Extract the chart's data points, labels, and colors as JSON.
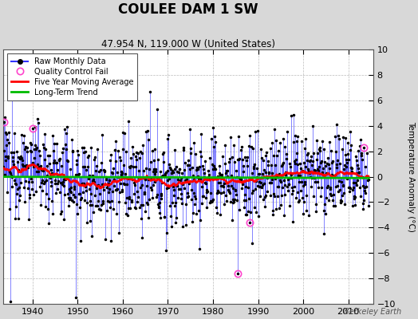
{
  "title": "COULEE DAM 1 SW",
  "subtitle": "47.954 N, 119.000 W (United States)",
  "ylabel": "Temperature Anomaly (°C)",
  "watermark": "Berkeley Earth",
  "ylim": [
    -10,
    10
  ],
  "xlim": [
    1933.5,
    2015.5
  ],
  "xticks": [
    1940,
    1950,
    1960,
    1970,
    1980,
    1990,
    2000,
    2010
  ],
  "yticks": [
    -10,
    -8,
    -6,
    -4,
    -2,
    0,
    2,
    4,
    6,
    8,
    10
  ],
  "raw_color": "#3333ff",
  "ma_color": "#ff0000",
  "trend_color": "#00bb00",
  "qc_color": "#ff44cc",
  "bg_color": "#d8d8d8",
  "plot_bg_color": "#ffffff",
  "seed": 12345,
  "start_year": 1933.5,
  "end_year": 2014.5,
  "ma_window": 60
}
